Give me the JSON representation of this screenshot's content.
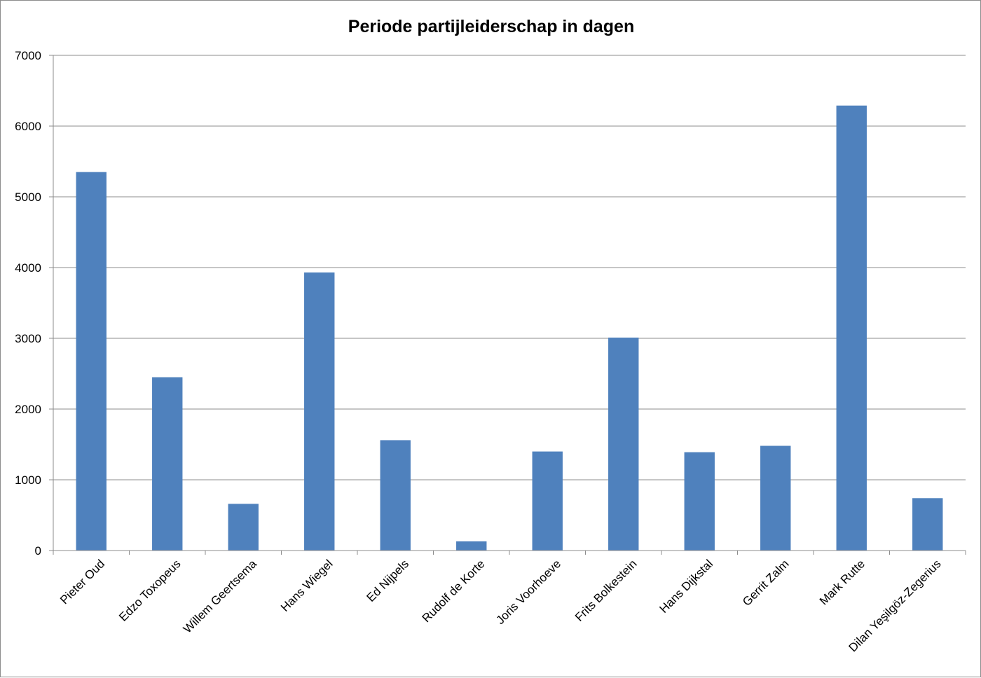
{
  "chart_data": {
    "type": "bar",
    "title": "Periode partijleiderschap in dagen",
    "xlabel": "",
    "ylabel": "",
    "ylim": [
      0,
      7000
    ],
    "yticks": [
      0,
      1000,
      2000,
      3000,
      4000,
      5000,
      6000,
      7000
    ],
    "grid": true,
    "legend": "none",
    "bar_color": "#4F81BD",
    "categories": [
      "Pieter Oud",
      "Edzo Toxopeus",
      "Willem Geertsema",
      "Hans Wiegel",
      "Ed Nijpels",
      "Rudolf de Korte",
      "Joris Voorhoeve",
      "Frits Bolkestein",
      "Hans Dijkstal",
      "Gerrit Zalm",
      "Mark Rutte",
      "Dilan Yeşilgöz-Zegerius"
    ],
    "values": [
      5350,
      2450,
      660,
      3930,
      1560,
      130,
      1400,
      3010,
      1390,
      1480,
      6290,
      740
    ]
  }
}
